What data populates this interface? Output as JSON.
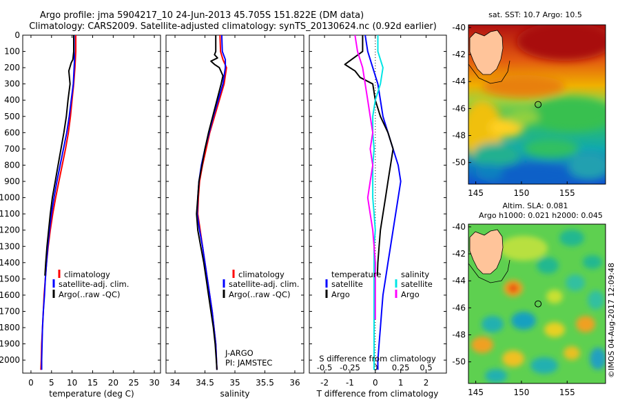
{
  "header": {
    "line1": "Argo profile: jma 5904217_10 24-Jun-2013 45.705S 151.822E (DM data)",
    "line2": "Climatology: CARS2009. Satellite-adjusted climatology: synTS_20130624.nc (0.92d earlier)"
  },
  "colors": {
    "climatology": "#ff0000",
    "satellite": "#0000ff",
    "argo": "#000000",
    "salinity_satellite": "#00e5e5",
    "salinity_argo": "#ff00ff"
  },
  "chart_data": [
    {
      "type": "line",
      "id": "temperature",
      "xlabel": "temperature (deg C)",
      "ylabel": "",
      "xlim": [
        -2,
        31.5
      ],
      "ylim": [
        2080,
        0
      ],
      "xticks": [
        "0",
        "5",
        "10",
        "15",
        "20",
        "25",
        "30"
      ],
      "xtick_values": [
        0,
        5,
        10,
        15,
        20,
        25,
        30
      ],
      "yticks": [
        "0",
        "100",
        "200",
        "300",
        "400",
        "500",
        "600",
        "700",
        "800",
        "900",
        "1000",
        "1100",
        "1200",
        "1300",
        "1400",
        "1500",
        "1600",
        "1700",
        "1800",
        "1900",
        "2000"
      ],
      "ytick_values": [
        0,
        100,
        200,
        300,
        400,
        500,
        600,
        700,
        800,
        900,
        1000,
        1100,
        1200,
        1300,
        1400,
        1500,
        1600,
        1700,
        1800,
        1900,
        2000
      ],
      "legend": [
        "climatology",
        "satellite-adj. clim.",
        "Argo(..raw -QC)"
      ],
      "series": [
        {
          "name": "climatology",
          "color": "#ff0000",
          "x": [
            10.9,
            10.9,
            10.7,
            10.4,
            10.0,
            9.6,
            9.1,
            8.4,
            7.6,
            6.8,
            6.0,
            5.3,
            4.7,
            4.2,
            3.8,
            3.5,
            3.2,
            3.0,
            2.8,
            2.6,
            2.5,
            2.4
          ],
          "y": [
            0,
            100,
            200,
            300,
            400,
            500,
            600,
            700,
            800,
            900,
            1000,
            1100,
            1200,
            1300,
            1400,
            1500,
            1600,
            1700,
            1800,
            1900,
            2000,
            2060
          ]
        },
        {
          "name": "satellite",
          "color": "#0000ff",
          "x": [
            10.5,
            10.5,
            10.6,
            10.3,
            9.8,
            9.3,
            8.7,
            7.9,
            7.1,
            6.3,
            5.6,
            5.0,
            4.5,
            4.1,
            3.8,
            3.5,
            3.3,
            3.0,
            2.8,
            2.7,
            2.6,
            2.6
          ],
          "y": [
            0,
            100,
            150,
            300,
            400,
            500,
            600,
            700,
            800,
            900,
            1000,
            1100,
            1200,
            1300,
            1400,
            1500,
            1600,
            1700,
            1800,
            1900,
            2000,
            2060
          ]
        },
        {
          "name": "Argo",
          "color": "#000000",
          "x": [
            10.4,
            10.4,
            10.2,
            9.8,
            9.2,
            9.5,
            9.0,
            8.6,
            8.0,
            7.3,
            6.6,
            5.9,
            5.2,
            4.7,
            4.3,
            3.9,
            3.6,
            3.4
          ],
          "y": [
            0,
            100,
            150,
            170,
            220,
            300,
            400,
            500,
            600,
            700,
            800,
            900,
            1000,
            1100,
            1200,
            1300,
            1400,
            1480
          ]
        }
      ]
    },
    {
      "type": "line",
      "id": "salinity",
      "xlabel": "salinity",
      "xlim": [
        33.85,
        36.15
      ],
      "ylim": [
        2080,
        0
      ],
      "xticks": [
        "34",
        "34.5",
        "35",
        "35.5",
        "36"
      ],
      "xtick_values": [
        34,
        34.5,
        35,
        35.5,
        36
      ],
      "legend": [
        "climatology",
        "satellite-adj. clim.",
        "Argo(..raw -QC)"
      ],
      "annotation": [
        "J-ARGO",
        "PI: JAMSTEC"
      ],
      "series": [
        {
          "name": "climatology",
          "color": "#ff0000",
          "x": [
            34.75,
            34.76,
            34.8,
            34.86,
            34.82,
            34.74,
            34.66,
            34.58,
            34.52,
            34.46,
            34.41,
            34.39,
            34.38,
            34.42,
            34.46,
            34.5,
            34.54,
            34.58,
            34.62,
            34.65,
            34.68,
            34.7
          ],
          "y": [
            0,
            100,
            150,
            200,
            300,
            400,
            500,
            600,
            700,
            800,
            900,
            1000,
            1100,
            1200,
            1300,
            1400,
            1500,
            1600,
            1700,
            1800,
            1900,
            2060
          ]
        },
        {
          "name": "satellite",
          "color": "#0000ff",
          "x": [
            34.78,
            34.79,
            34.84,
            34.84,
            34.8,
            34.72,
            34.64,
            34.57,
            34.5,
            34.44,
            34.4,
            34.38,
            34.37,
            34.41,
            34.46,
            34.5,
            34.54,
            34.58,
            34.62,
            34.65,
            34.68,
            34.7
          ],
          "y": [
            0,
            100,
            150,
            200,
            300,
            400,
            500,
            600,
            700,
            800,
            900,
            1000,
            1100,
            1200,
            1300,
            1400,
            1500,
            1600,
            1700,
            1800,
            1900,
            2060
          ]
        },
        {
          "name": "Argo",
          "color": "#000000",
          "x": [
            34.68,
            34.68,
            34.66,
            34.71,
            34.6,
            34.66,
            34.74,
            34.8,
            34.77,
            34.7,
            34.63,
            34.56,
            34.5,
            34.45,
            34.4,
            34.38,
            34.36,
            34.38,
            34.43,
            34.48,
            34.52,
            34.56,
            34.6,
            34.64,
            34.67,
            34.69,
            34.7
          ],
          "y": [
            0,
            100,
            120,
            140,
            160,
            180,
            200,
            250,
            300,
            400,
            500,
            600,
            700,
            800,
            900,
            1000,
            1100,
            1200,
            1300,
            1400,
            1500,
            1600,
            1700,
            1800,
            1900,
            2000,
            2060
          ]
        }
      ]
    },
    {
      "type": "line",
      "id": "differences",
      "xlabel": "T difference from climatology",
      "xlim": [
        -2.6,
        2.8
      ],
      "ylim": [
        2080,
        0
      ],
      "xticks": [
        "-2",
        "-1",
        "0",
        "1",
        "2"
      ],
      "xtick_values": [
        -2,
        -1,
        0,
        1,
        2
      ],
      "top_axis_label": "S difference from climatology",
      "top_ticks": [
        "-0.5",
        "-0.25",
        "0",
        "0.25",
        "0.5"
      ],
      "top_tick_values": [
        -2,
        -1,
        0,
        1,
        2
      ],
      "legend_temperature": {
        "heading": "temperature",
        "items": [
          "satellite",
          "Argo"
        ]
      },
      "legend_salinity": {
        "heading": "salinity",
        "items": [
          "satellite",
          "Argo"
        ]
      },
      "series": [
        {
          "name": "T satellite",
          "color": "#0000ff",
          "x": [
            -0.4,
            -0.3,
            -0.1,
            0.1,
            0.2,
            0.3,
            0.5,
            0.7,
            0.9,
            1.0,
            0.9,
            0.8,
            0.7,
            0.6,
            0.5,
            0.4,
            0.3,
            0.25,
            0.2,
            0.15,
            0.1,
            0.1
          ],
          "y": [
            0,
            100,
            200,
            300,
            400,
            500,
            600,
            700,
            800,
            900,
            1000,
            1100,
            1200,
            1300,
            1400,
            1500,
            1600,
            1700,
            1800,
            1900,
            2000,
            2060
          ]
        },
        {
          "name": "T Argo",
          "color": "#000000",
          "x": [
            -0.5,
            -0.5,
            -1.2,
            -0.8,
            -0.6,
            -0.1,
            0.0,
            0.2,
            0.5,
            0.7,
            0.6,
            0.5,
            0.4,
            0.3,
            0.2,
            0.15,
            0.1,
            0.08
          ],
          "y": [
            0,
            100,
            180,
            220,
            260,
            300,
            400,
            500,
            600,
            700,
            800,
            900,
            1000,
            1100,
            1200,
            1300,
            1400,
            1480
          ]
        },
        {
          "name": "S satellite",
          "color": "#00e5e5",
          "x": [
            0.1,
            0.1,
            0.3,
            0.2,
            0.0,
            -0.1,
            -0.1,
            -0.05,
            -0.1,
            -0.1,
            -0.1,
            -0.05,
            0.0,
            -0.05,
            -0.05,
            -0.05,
            -0.05,
            -0.05,
            -0.05,
            -0.05,
            -0.05
          ],
          "y": [
            0,
            100,
            200,
            300,
            400,
            500,
            600,
            700,
            800,
            900,
            1000,
            1100,
            1200,
            1300,
            1400,
            1500,
            1600,
            1700,
            1800,
            1900,
            2060
          ]
        },
        {
          "name": "S Argo",
          "color": "#ff00ff",
          "x": [
            -0.8,
            -0.7,
            -0.5,
            -0.4,
            -0.3,
            -0.2,
            -0.1,
            -0.2,
            -0.1,
            -0.2,
            -0.3,
            -0.2,
            -0.1,
            -0.05,
            0.0,
            0.0,
            0.0,
            0.0
          ],
          "y": [
            0,
            100,
            200,
            300,
            400,
            500,
            600,
            700,
            800,
            900,
            1000,
            1100,
            1200,
            1300,
            1400,
            1500,
            1600,
            1750
          ]
        }
      ]
    },
    {
      "type": "heatmap",
      "id": "sst-map",
      "title": "sat. SST: 10.7  Argo: 10.5",
      "xlim": [
        144.2,
        159.2
      ],
      "ylim": [
        -51.6,
        -39.8
      ],
      "xticks": [
        "145",
        "150",
        "155"
      ],
      "xtick_values": [
        145,
        150,
        155
      ],
      "yticks": [
        "-40",
        "-42",
        "-44",
        "-46",
        "-48",
        "-50"
      ],
      "ytick_values": [
        -40,
        -42,
        -44,
        -46,
        -48,
        -50
      ],
      "float_position": [
        151.822,
        -45.705
      ]
    },
    {
      "type": "heatmap",
      "id": "sla-map",
      "title_line1": "Altim. SLA: 0.081",
      "title_line2": "Argo h1000: 0.021  h2000: 0.045",
      "xlim": [
        144.2,
        159.2
      ],
      "ylim": [
        -51.6,
        -39.8
      ],
      "xticks": [
        "145",
        "150",
        "155"
      ],
      "xtick_values": [
        145,
        150,
        155
      ],
      "yticks": [
        "-40",
        "-42",
        "-44",
        "-46",
        "-48",
        "-50"
      ],
      "ytick_values": [
        -40,
        -42,
        -44,
        -46,
        -48,
        -50
      ],
      "float_position": [
        151.822,
        -45.705
      ]
    }
  ],
  "footer": {
    "stamp": "©IMOS 04-Aug-2017 12:09:48"
  }
}
